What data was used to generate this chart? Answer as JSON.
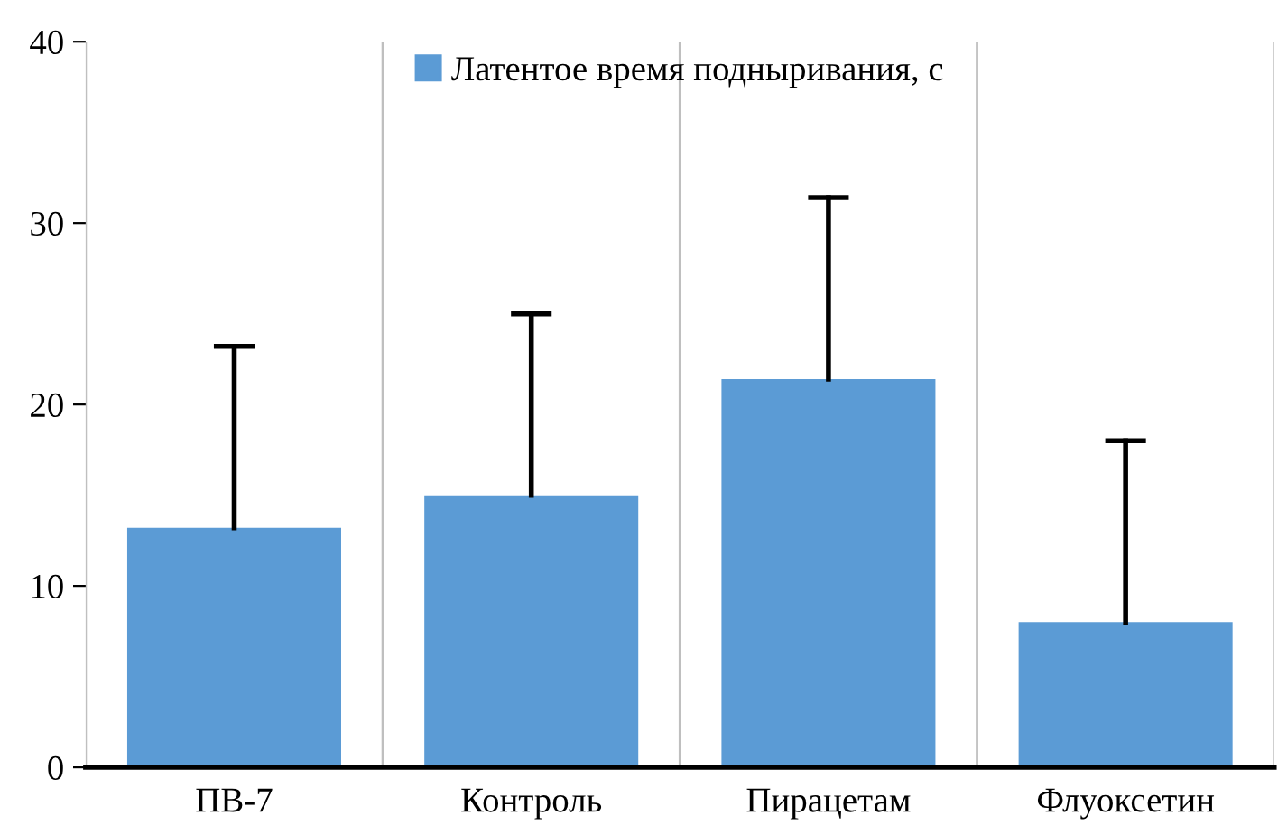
{
  "chart_data": {
    "type": "bar",
    "categories": [
      "ПВ-7",
      "Контроль",
      "Пирацетам",
      "Флуоксетин"
    ],
    "series": [
      {
        "name": "Латентое время подныривания, с",
        "color": "#5b9bd5",
        "values": [
          13.2,
          15.0,
          21.4,
          8.0
        ],
        "errors": [
          [
            13.2,
            23.2
          ],
          [
            15.0,
            25.0
          ],
          [
            21.4,
            31.4
          ],
          [
            8.0,
            18.0
          ]
        ]
      }
    ],
    "ylim": [
      0,
      40
    ],
    "yticks": [
      0,
      10,
      20,
      30,
      40
    ],
    "grid": "x",
    "legend": "top"
  }
}
